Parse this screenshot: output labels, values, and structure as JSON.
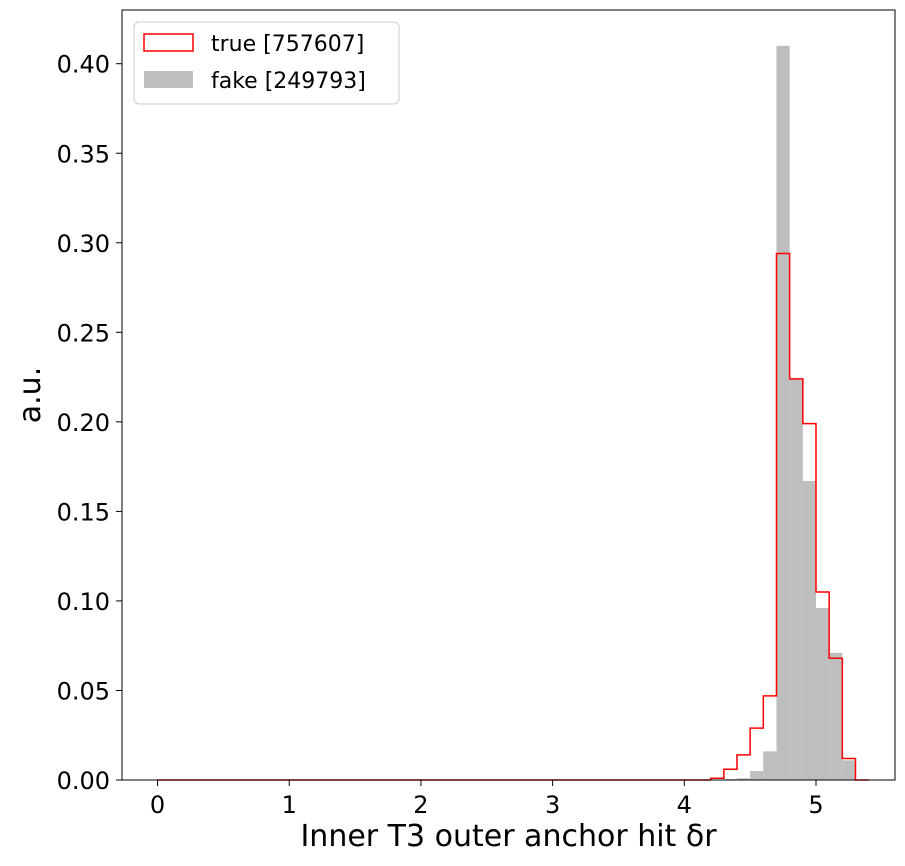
{
  "chart_data": {
    "type": "histogram",
    "xlabel": "Inner T3 outer anchor hit δr",
    "ylabel": "a.u.",
    "xlim": [
      -0.27,
      5.6
    ],
    "ylim": [
      0,
      0.43
    ],
    "xticks": [
      0,
      1,
      2,
      3,
      4,
      5
    ],
    "yticks": [
      0.0,
      0.05,
      0.1,
      0.15,
      0.2,
      0.25,
      0.3,
      0.35,
      0.4
    ],
    "xtick_labels": [
      "0",
      "1",
      "2",
      "3",
      "4",
      "5"
    ],
    "ytick_labels": [
      "0.00",
      "0.05",
      "0.10",
      "0.15",
      "0.20",
      "0.25",
      "0.30",
      "0.35",
      "0.40"
    ],
    "bins": {
      "start": 0.0,
      "width": 0.1,
      "count": 54
    },
    "legend": {
      "placement": "upper-left"
    },
    "series": [
      {
        "name": "true [757607]",
        "style": "step",
        "color": "#ff0000",
        "bin_edges": [
          4.0,
          4.1,
          4.2,
          4.3,
          4.4,
          4.5,
          4.6,
          4.7,
          4.8,
          4.9,
          5.0,
          5.1,
          5.2,
          5.3,
          5.4
        ],
        "values": [
          0.0,
          0.0,
          0.001,
          0.006,
          0.014,
          0.029,
          0.047,
          0.294,
          0.224,
          0.199,
          0.105,
          0.068,
          0.012,
          0.0
        ]
      },
      {
        "name": "fake [249793]",
        "style": "filled",
        "color": "#bebebe",
        "bin_edges": [
          4.0,
          4.1,
          4.2,
          4.3,
          4.4,
          4.5,
          4.6,
          4.7,
          4.8,
          4.9,
          5.0,
          5.1,
          5.2,
          5.3,
          5.4
        ],
        "values": [
          0.0,
          0.0,
          0.0,
          0.0005,
          0.001,
          0.005,
          0.016,
          0.41,
          0.224,
          0.167,
          0.096,
          0.071,
          0.011,
          0.0
        ]
      }
    ]
  }
}
